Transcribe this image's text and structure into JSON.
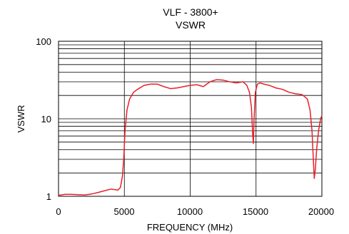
{
  "chart_data": {
    "type": "line",
    "title": "VLF - 3800+",
    "subtitle": "VSWR",
    "xlabel": "FREQUENCY (MHz)",
    "ylabel": "VSWR",
    "xlim": [
      0,
      20000
    ],
    "ylim": [
      1,
      100
    ],
    "yscale": "log",
    "x_ticks": [
      "0",
      "5000",
      "10000",
      "15000",
      "20000"
    ],
    "y_ticks": [
      "1",
      "10",
      "100"
    ],
    "grid": true,
    "legend": "none",
    "series": [
      {
        "color": "#e8202a",
        "x": [
          0,
          500,
          1000,
          1500,
          2000,
          2500,
          3000,
          3500,
          4000,
          4300,
          4500,
          4700,
          4850,
          4950,
          5050,
          5200,
          5400,
          5700,
          6000,
          6500,
          7000,
          7500,
          8000,
          8500,
          9000,
          9500,
          10000,
          10500,
          11000,
          11500,
          12000,
          12500,
          13000,
          13500,
          14000,
          14300,
          14500,
          14650,
          14750,
          14800,
          14850,
          14950,
          15100,
          15300,
          15600,
          16000,
          16500,
          17000,
          17500,
          18000,
          18500,
          18900,
          19100,
          19250,
          19350,
          19420,
          19500,
          19600,
          19750,
          19900,
          20000
        ],
        "values": [
          1.03,
          1.06,
          1.06,
          1.05,
          1.04,
          1.07,
          1.12,
          1.18,
          1.24,
          1.22,
          1.2,
          1.3,
          1.8,
          3.0,
          7.0,
          13.0,
          18.0,
          22.0,
          24.0,
          27.0,
          28.0,
          28.0,
          26.0,
          24.5,
          25.0,
          26.0,
          27.0,
          27.5,
          26.0,
          30.0,
          32.0,
          31.5,
          30.0,
          29.0,
          30.0,
          27.0,
          22.0,
          14.0,
          6.0,
          4.8,
          10.0,
          22.0,
          28.0,
          29.0,
          28.0,
          27.0,
          25.0,
          24.0,
          22.0,
          21.0,
          20.5,
          18.0,
          13.0,
          7.0,
          3.0,
          1.7,
          2.2,
          4.0,
          7.0,
          10.0,
          11.0
        ]
      }
    ]
  }
}
